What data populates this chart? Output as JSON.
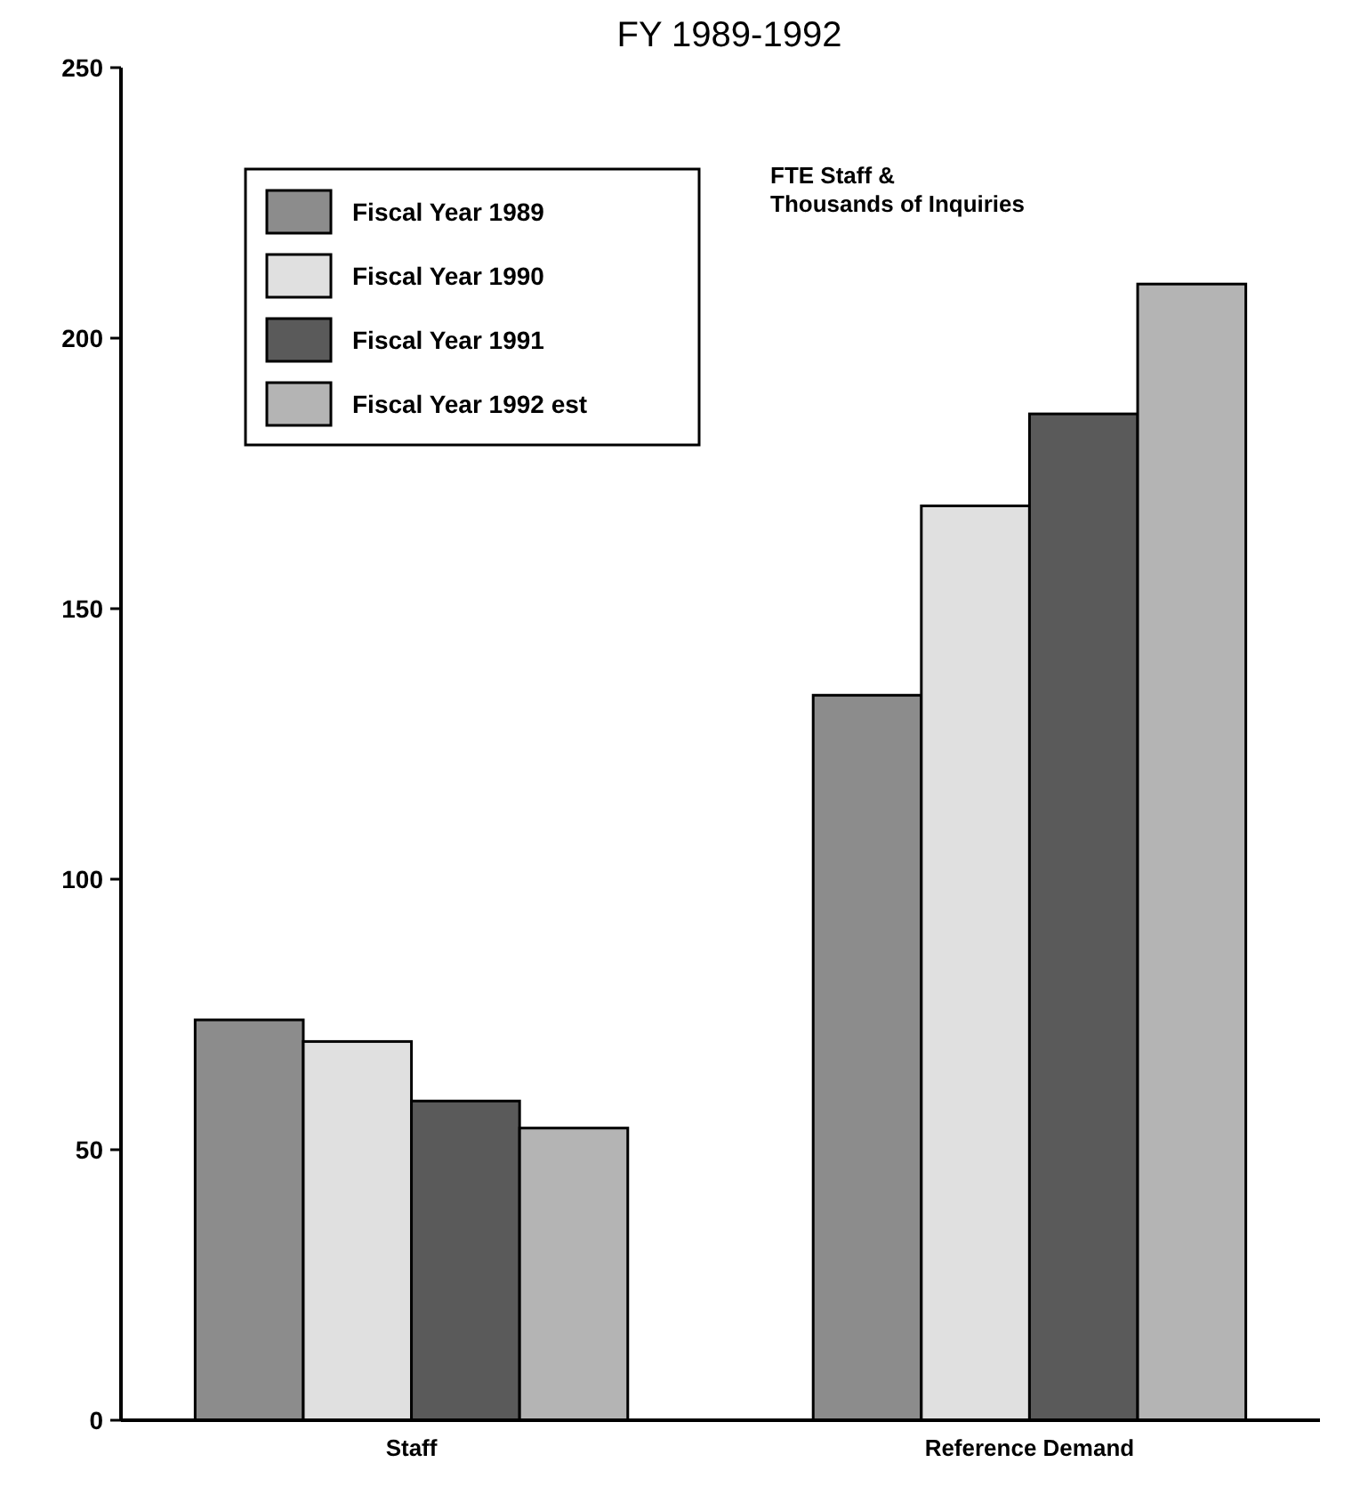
{
  "chart_data": {
    "type": "bar",
    "title": "FY 1989-1992",
    "categories": [
      "Staff",
      "Reference Demand"
    ],
    "series": [
      {
        "name": "Fiscal Year 1989",
        "color": "#8c8c8c",
        "values": [
          74,
          134
        ]
      },
      {
        "name": "Fiscal Year 1990",
        "color": "#e0e0e0",
        "values": [
          70,
          169
        ]
      },
      {
        "name": "Fiscal Year 1991",
        "color": "#5a5a5a",
        "values": [
          59,
          186
        ]
      },
      {
        "name": "Fiscal Year 1992 est",
        "color": "#b4b4b4",
        "values": [
          54,
          210
        ]
      }
    ],
    "ylim": [
      0,
      250
    ],
    "yticks": [
      0,
      50,
      100,
      150,
      200,
      250
    ],
    "grid": false,
    "legend": "top left",
    "annotations": [
      "FTE Staff &\nThousands of Inquiries"
    ]
  }
}
